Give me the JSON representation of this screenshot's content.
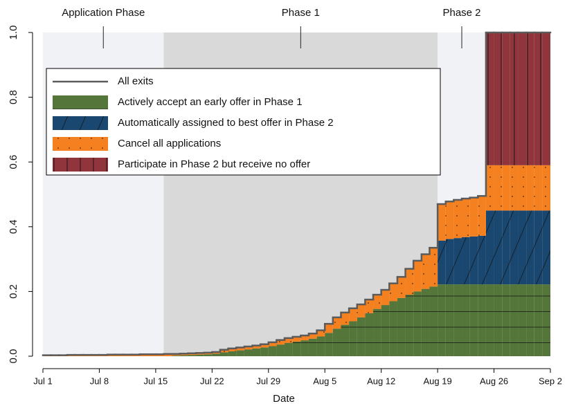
{
  "chart_data": {
    "type": "stacked-step-area",
    "xlabel": "Date",
    "x": [
      0,
      1,
      2,
      3,
      4,
      5,
      6,
      7,
      8,
      9,
      10,
      11,
      12,
      13,
      14,
      15,
      16,
      17,
      18,
      19,
      20,
      21,
      22,
      23,
      24,
      25,
      26,
      27,
      28,
      29,
      30,
      31,
      32,
      33,
      34,
      35,
      36,
      37,
      38,
      39,
      40,
      41,
      42,
      43,
      44,
      45,
      46,
      47,
      48,
      49,
      50,
      51,
      52,
      53,
      54,
      55,
      56,
      57,
      58,
      59,
      60,
      61,
      62
    ],
    "xlim": [
      0,
      63
    ],
    "xticks": [
      {
        "value": 0,
        "label": "Jul 1"
      },
      {
        "value": 7,
        "label": "Jul 8"
      },
      {
        "value": 14,
        "label": "Jul 15"
      },
      {
        "value": 21,
        "label": "Jul 22"
      },
      {
        "value": 28,
        "label": "Jul 29"
      },
      {
        "value": 35,
        "label": "Aug 5"
      },
      {
        "value": 42,
        "label": "Aug 12"
      },
      {
        "value": 49,
        "label": "Aug 19"
      },
      {
        "value": 56,
        "label": "Aug 26"
      },
      {
        "value": 63,
        "label": "Sep 2"
      }
    ],
    "ylim": [
      0,
      1
    ],
    "yticks": [
      {
        "value": 0,
        "label": "0.0"
      },
      0.2,
      0.4,
      0.6,
      0.8,
      {
        "value": 1,
        "label": "1.0"
      }
    ],
    "phases": [
      {
        "label": "Application Phase",
        "start": 0,
        "end": 15,
        "color": "#f1f2f6"
      },
      {
        "label": "Phase 1",
        "start": 15,
        "end": 49,
        "color": "#d9d9d9"
      },
      {
        "label": "Phase 2",
        "start": 49,
        "end": 55,
        "color": "#f1f2f6"
      }
    ],
    "outline": {
      "name": "All exits",
      "color": "#5b5b5b",
      "values": [
        0.003,
        0.003,
        0.003,
        0.004,
        0.004,
        0.004,
        0.004,
        0.004,
        0.005,
        0.005,
        0.005,
        0.005,
        0.006,
        0.006,
        0.006,
        0.007,
        0.007,
        0.008,
        0.009,
        0.01,
        0.011,
        0.013,
        0.02,
        0.024,
        0.027,
        0.03,
        0.033,
        0.037,
        0.043,
        0.05,
        0.056,
        0.06,
        0.064,
        0.07,
        0.08,
        0.1,
        0.12,
        0.135,
        0.148,
        0.16,
        0.175,
        0.19,
        0.205,
        0.225,
        0.245,
        0.27,
        0.295,
        0.315,
        0.335,
        0.47,
        0.478,
        0.483,
        0.487,
        0.49,
        0.495,
        1,
        1,
        1,
        1,
        1,
        1,
        1,
        1
      ]
    },
    "series": [
      {
        "name": "Actively accept an early offer in Phase 1",
        "color": "#55763a",
        "pattern": "hlines",
        "values": [
          0,
          0,
          0,
          0,
          0,
          0,
          0,
          0,
          0,
          0,
          0,
          0,
          0,
          0,
          0,
          0,
          0.002,
          0.003,
          0.004,
          0.005,
          0.006,
          0.008,
          0.012,
          0.015,
          0.018,
          0.021,
          0.024,
          0.027,
          0.031,
          0.036,
          0.041,
          0.045,
          0.049,
          0.054,
          0.061,
          0.072,
          0.085,
          0.097,
          0.108,
          0.12,
          0.133,
          0.146,
          0.158,
          0.17,
          0.18,
          0.19,
          0.2,
          0.208,
          0.215,
          0.222,
          0.222,
          0.222,
          0.222,
          0.222,
          0.222,
          0.222,
          0.222,
          0.222,
          0.222,
          0.222,
          0.222,
          0.222,
          0.222
        ]
      },
      {
        "name": "Automatically assigned to best offer in Phase 2",
        "color": "#1a476f",
        "pattern": "diag",
        "values": [
          0,
          0,
          0,
          0,
          0,
          0,
          0,
          0,
          0,
          0,
          0,
          0,
          0,
          0,
          0,
          0,
          0,
          0,
          0,
          0,
          0,
          0,
          0,
          0,
          0,
          0,
          0,
          0,
          0,
          0,
          0,
          0,
          0,
          0,
          0,
          0,
          0,
          0,
          0,
          0,
          0,
          0,
          0,
          0,
          0,
          0,
          0,
          0,
          0,
          0.135,
          0.14,
          0.143,
          0.146,
          0.148,
          0.15,
          0.228,
          0.228,
          0.228,
          0.228,
          0.228,
          0.228,
          0.228,
          0.228
        ]
      },
      {
        "name": "Cancel all applications",
        "color": "#f4801f",
        "pattern": "dots",
        "values": [
          0.003,
          0.003,
          0.003,
          0.004,
          0.004,
          0.004,
          0.004,
          0.004,
          0.005,
          0.005,
          0.005,
          0.005,
          0.006,
          0.006,
          0.006,
          0.007,
          0.005,
          0.005,
          0.005,
          0.005,
          0.005,
          0.005,
          0.008,
          0.009,
          0.009,
          0.009,
          0.009,
          0.01,
          0.012,
          0.014,
          0.015,
          0.015,
          0.015,
          0.016,
          0.019,
          0.028,
          0.035,
          0.038,
          0.04,
          0.04,
          0.042,
          0.044,
          0.047,
          0.055,
          0.065,
          0.08,
          0.095,
          0.107,
          0.12,
          0.113,
          0.118,
          0.118,
          0.119,
          0.12,
          0.123,
          0.14,
          0.14,
          0.14,
          0.14,
          0.14,
          0.14,
          0.14,
          0.14
        ]
      },
      {
        "name": "Participate in Phase 2 but receive no offer",
        "color": "#90353b",
        "pattern": "vlines",
        "values": [
          0,
          0,
          0,
          0,
          0,
          0,
          0,
          0,
          0,
          0,
          0,
          0,
          0,
          0,
          0,
          0,
          0,
          0,
          0,
          0,
          0,
          0,
          0,
          0,
          0,
          0,
          0,
          0,
          0,
          0,
          0,
          0,
          0,
          0,
          0,
          0,
          0,
          0,
          0,
          0,
          0,
          0,
          0,
          0,
          0,
          0,
          0,
          0,
          0,
          0,
          0,
          0,
          0,
          0,
          0,
          0.41,
          0.41,
          0.41,
          0.41,
          0.41,
          0.41,
          0.41,
          0.41
        ]
      }
    ]
  }
}
